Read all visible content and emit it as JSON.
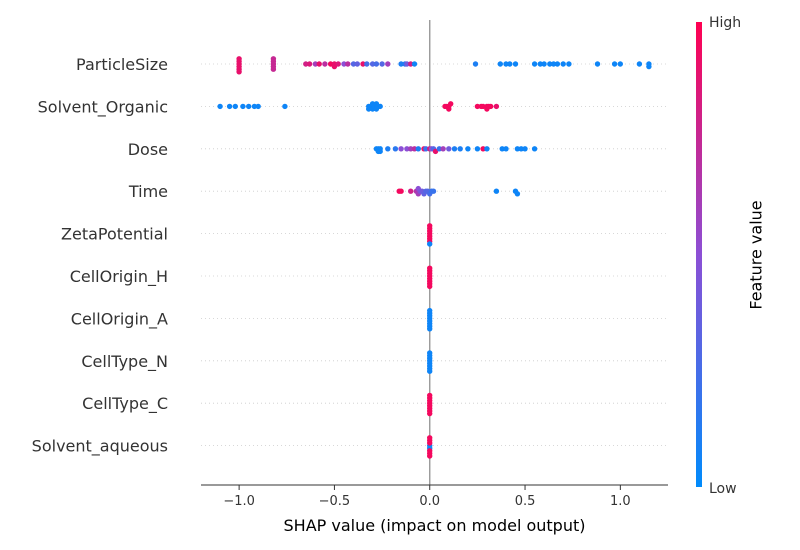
{
  "chart_data": {
    "type": "scatter",
    "subtype": "shap-beeswarm",
    "xlabel": "SHAP value (impact on model output)",
    "xlim": [
      -1.2,
      1.25
    ],
    "xticks": [
      -1.0,
      -0.5,
      0.0,
      0.5,
      1.0
    ],
    "xtick_labels": [
      "−1.0",
      "−0.5",
      "0.0",
      "0.5",
      "1.0"
    ],
    "colorbar": {
      "label": "Feature value",
      "high_label": "High",
      "low_label": "Low",
      "low_color": "#008bfb",
      "high_color": "#ff0051"
    },
    "colors": {
      "low": "#008bfb",
      "high": "#ff0051",
      "zero_line": "#999999",
      "row_line": "#cccccc"
    },
    "features": [
      {
        "name": "ParticleSize",
        "points": [
          [
            -1.0,
            0.9
          ],
          [
            -1.0,
            0.9
          ],
          [
            -1.0,
            0.9
          ],
          [
            -1.0,
            0.9
          ],
          [
            -1.0,
            0.9
          ],
          [
            -1.0,
            0.9
          ],
          [
            -0.82,
            0.75
          ],
          [
            -0.82,
            0.75
          ],
          [
            -0.82,
            0.75
          ],
          [
            -0.82,
            0.75
          ],
          [
            -0.82,
            0.75
          ],
          [
            -0.65,
            0.8
          ],
          [
            -0.63,
            0.85
          ],
          [
            -0.6,
            0.6
          ],
          [
            -0.58,
            0.9
          ],
          [
            -0.55,
            0.7
          ],
          [
            -0.52,
            0.95
          ],
          [
            -0.5,
            0.9
          ],
          [
            -0.5,
            0.9
          ],
          [
            -0.48,
            0.85
          ],
          [
            -0.45,
            0.5
          ],
          [
            -0.43,
            0.7
          ],
          [
            -0.4,
            0.3
          ],
          [
            -0.38,
            0.35
          ],
          [
            -0.35,
            0.9
          ],
          [
            -0.33,
            0.25
          ],
          [
            -0.3,
            0.3
          ],
          [
            -0.28,
            0.25
          ],
          [
            -0.25,
            0.3
          ],
          [
            -0.22,
            0.6
          ],
          [
            -0.15,
            0.1
          ],
          [
            -0.13,
            0.15
          ],
          [
            -0.12,
            0.4
          ],
          [
            -0.1,
            0.8
          ],
          [
            -0.08,
            0.05
          ],
          [
            0.24,
            0.1
          ],
          [
            0.37,
            0.05
          ],
          [
            0.4,
            0.05
          ],
          [
            0.42,
            0.05
          ],
          [
            0.45,
            0.05
          ],
          [
            0.55,
            0.05
          ],
          [
            0.58,
            0.05
          ],
          [
            0.6,
            0.05
          ],
          [
            0.63,
            0.05
          ],
          [
            0.65,
            0.05
          ],
          [
            0.67,
            0.05
          ],
          [
            0.7,
            0.05
          ],
          [
            0.73,
            0.05
          ],
          [
            0.88,
            0.05
          ],
          [
            0.97,
            0.05
          ],
          [
            1.0,
            0.05
          ],
          [
            1.1,
            0.05
          ],
          [
            1.15,
            0.05
          ],
          [
            1.15,
            0.05
          ]
        ]
      },
      {
        "name": "Solvent_Organic",
        "points": [
          [
            -1.1,
            0.05
          ],
          [
            -1.05,
            0.05
          ],
          [
            -1.02,
            0.05
          ],
          [
            -0.98,
            0.05
          ],
          [
            -0.95,
            0.05
          ],
          [
            -0.92,
            0.05
          ],
          [
            -0.9,
            0.05
          ],
          [
            -0.76,
            0.05
          ],
          [
            -0.32,
            0.05
          ],
          [
            -0.31,
            0.05
          ],
          [
            -0.3,
            0.05
          ],
          [
            -0.29,
            0.05
          ],
          [
            -0.28,
            0.05
          ],
          [
            -0.27,
            0.05
          ],
          [
            -0.26,
            0.05
          ],
          [
            -0.3,
            0.05
          ],
          [
            -0.28,
            0.05
          ],
          [
            -0.32,
            0.05
          ],
          [
            0.08,
            0.95
          ],
          [
            0.09,
            0.95
          ],
          [
            0.1,
            0.95
          ],
          [
            0.1,
            0.95
          ],
          [
            0.11,
            0.95
          ],
          [
            0.25,
            0.95
          ],
          [
            0.27,
            0.95
          ],
          [
            0.28,
            0.95
          ],
          [
            0.3,
            0.95
          ],
          [
            0.3,
            0.95
          ],
          [
            0.31,
            0.95
          ],
          [
            0.32,
            0.95
          ],
          [
            0.35,
            0.9
          ]
        ]
      },
      {
        "name": "Dose",
        "points": [
          [
            -0.28,
            0.05
          ],
          [
            -0.27,
            0.05
          ],
          [
            -0.26,
            0.05
          ],
          [
            -0.27,
            0.05
          ],
          [
            -0.26,
            0.05
          ],
          [
            -0.22,
            0.1
          ],
          [
            -0.18,
            0.15
          ],
          [
            -0.15,
            0.5
          ],
          [
            -0.12,
            0.5
          ],
          [
            -0.1,
            0.6
          ],
          [
            -0.08,
            0.7
          ],
          [
            -0.06,
            0.1
          ],
          [
            -0.03,
            0.9
          ],
          [
            -0.02,
            0.2
          ],
          [
            0.0,
            0.8
          ],
          [
            0.01,
            0.5
          ],
          [
            0.02,
            0.3
          ],
          [
            0.03,
            0.9
          ],
          [
            0.05,
            0.2
          ],
          [
            0.07,
            0.6
          ],
          [
            0.1,
            0.4
          ],
          [
            0.13,
            0.1
          ],
          [
            0.16,
            0.1
          ],
          [
            0.2,
            0.05
          ],
          [
            0.25,
            0.05
          ],
          [
            0.28,
            0.95
          ],
          [
            0.3,
            0.05
          ],
          [
            0.38,
            0.05
          ],
          [
            0.4,
            0.05
          ],
          [
            0.46,
            0.05
          ],
          [
            0.48,
            0.05
          ],
          [
            0.5,
            0.05
          ],
          [
            0.55,
            0.05
          ]
        ]
      },
      {
        "name": "Time",
        "points": [
          [
            -0.16,
            0.95
          ],
          [
            -0.15,
            0.95
          ],
          [
            -0.1,
            0.8
          ],
          [
            -0.07,
            0.65
          ],
          [
            -0.06,
            0.6
          ],
          [
            -0.06,
            0.5
          ],
          [
            -0.05,
            0.45
          ],
          [
            -0.04,
            0.4
          ],
          [
            -0.03,
            0.35
          ],
          [
            -0.02,
            0.3
          ],
          [
            -0.01,
            0.3
          ],
          [
            0.0,
            0.25
          ],
          [
            0.01,
            0.2
          ],
          [
            0.02,
            0.2
          ],
          [
            0.35,
            0.05
          ],
          [
            0.45,
            0.05
          ],
          [
            0.46,
            0.05
          ]
        ]
      },
      {
        "name": "ZetaPotential",
        "points": [
          [
            0.0,
            0.95
          ],
          [
            0.0,
            0.95
          ],
          [
            0.0,
            0.95
          ],
          [
            0.0,
            0.95
          ],
          [
            0.0,
            0.95
          ],
          [
            0.0,
            0.95
          ],
          [
            0.0,
            0.95
          ],
          [
            0.0,
            0.05
          ]
        ]
      },
      {
        "name": "CellOrigin_H",
        "points": [
          [
            0.0,
            0.95
          ],
          [
            0.0,
            0.95
          ],
          [
            0.0,
            0.95
          ],
          [
            0.0,
            0.95
          ],
          [
            0.0,
            0.95
          ],
          [
            0.0,
            0.95
          ],
          [
            0.0,
            0.95
          ],
          [
            0.0,
            0.95
          ]
        ]
      },
      {
        "name": "CellOrigin_A",
        "points": [
          [
            0.0,
            0.05
          ],
          [
            0.0,
            0.05
          ],
          [
            0.0,
            0.05
          ],
          [
            0.0,
            0.05
          ],
          [
            0.0,
            0.05
          ],
          [
            0.0,
            0.05
          ],
          [
            0.0,
            0.05
          ],
          [
            0.0,
            0.05
          ]
        ]
      },
      {
        "name": "CellType_N",
        "points": [
          [
            0.0,
            0.05
          ],
          [
            0.0,
            0.05
          ],
          [
            0.0,
            0.05
          ],
          [
            0.0,
            0.05
          ],
          [
            0.0,
            0.05
          ],
          [
            0.0,
            0.05
          ],
          [
            0.0,
            0.05
          ],
          [
            0.0,
            0.05
          ]
        ]
      },
      {
        "name": "CellType_C",
        "points": [
          [
            0.0,
            0.95
          ],
          [
            0.0,
            0.95
          ],
          [
            0.0,
            0.95
          ],
          [
            0.0,
            0.95
          ],
          [
            0.0,
            0.95
          ],
          [
            0.0,
            0.95
          ],
          [
            0.0,
            0.95
          ],
          [
            0.0,
            0.95
          ]
        ]
      },
      {
        "name": "Solvent_aqueous",
        "points": [
          [
            0.0,
            0.05
          ],
          [
            0.0,
            0.05
          ],
          [
            0.0,
            0.95
          ],
          [
            0.0,
            0.95
          ],
          [
            0.0,
            0.95
          ],
          [
            0.0,
            0.95
          ],
          [
            0.0,
            0.95
          ],
          [
            0.0,
            0.95
          ]
        ]
      }
    ]
  }
}
